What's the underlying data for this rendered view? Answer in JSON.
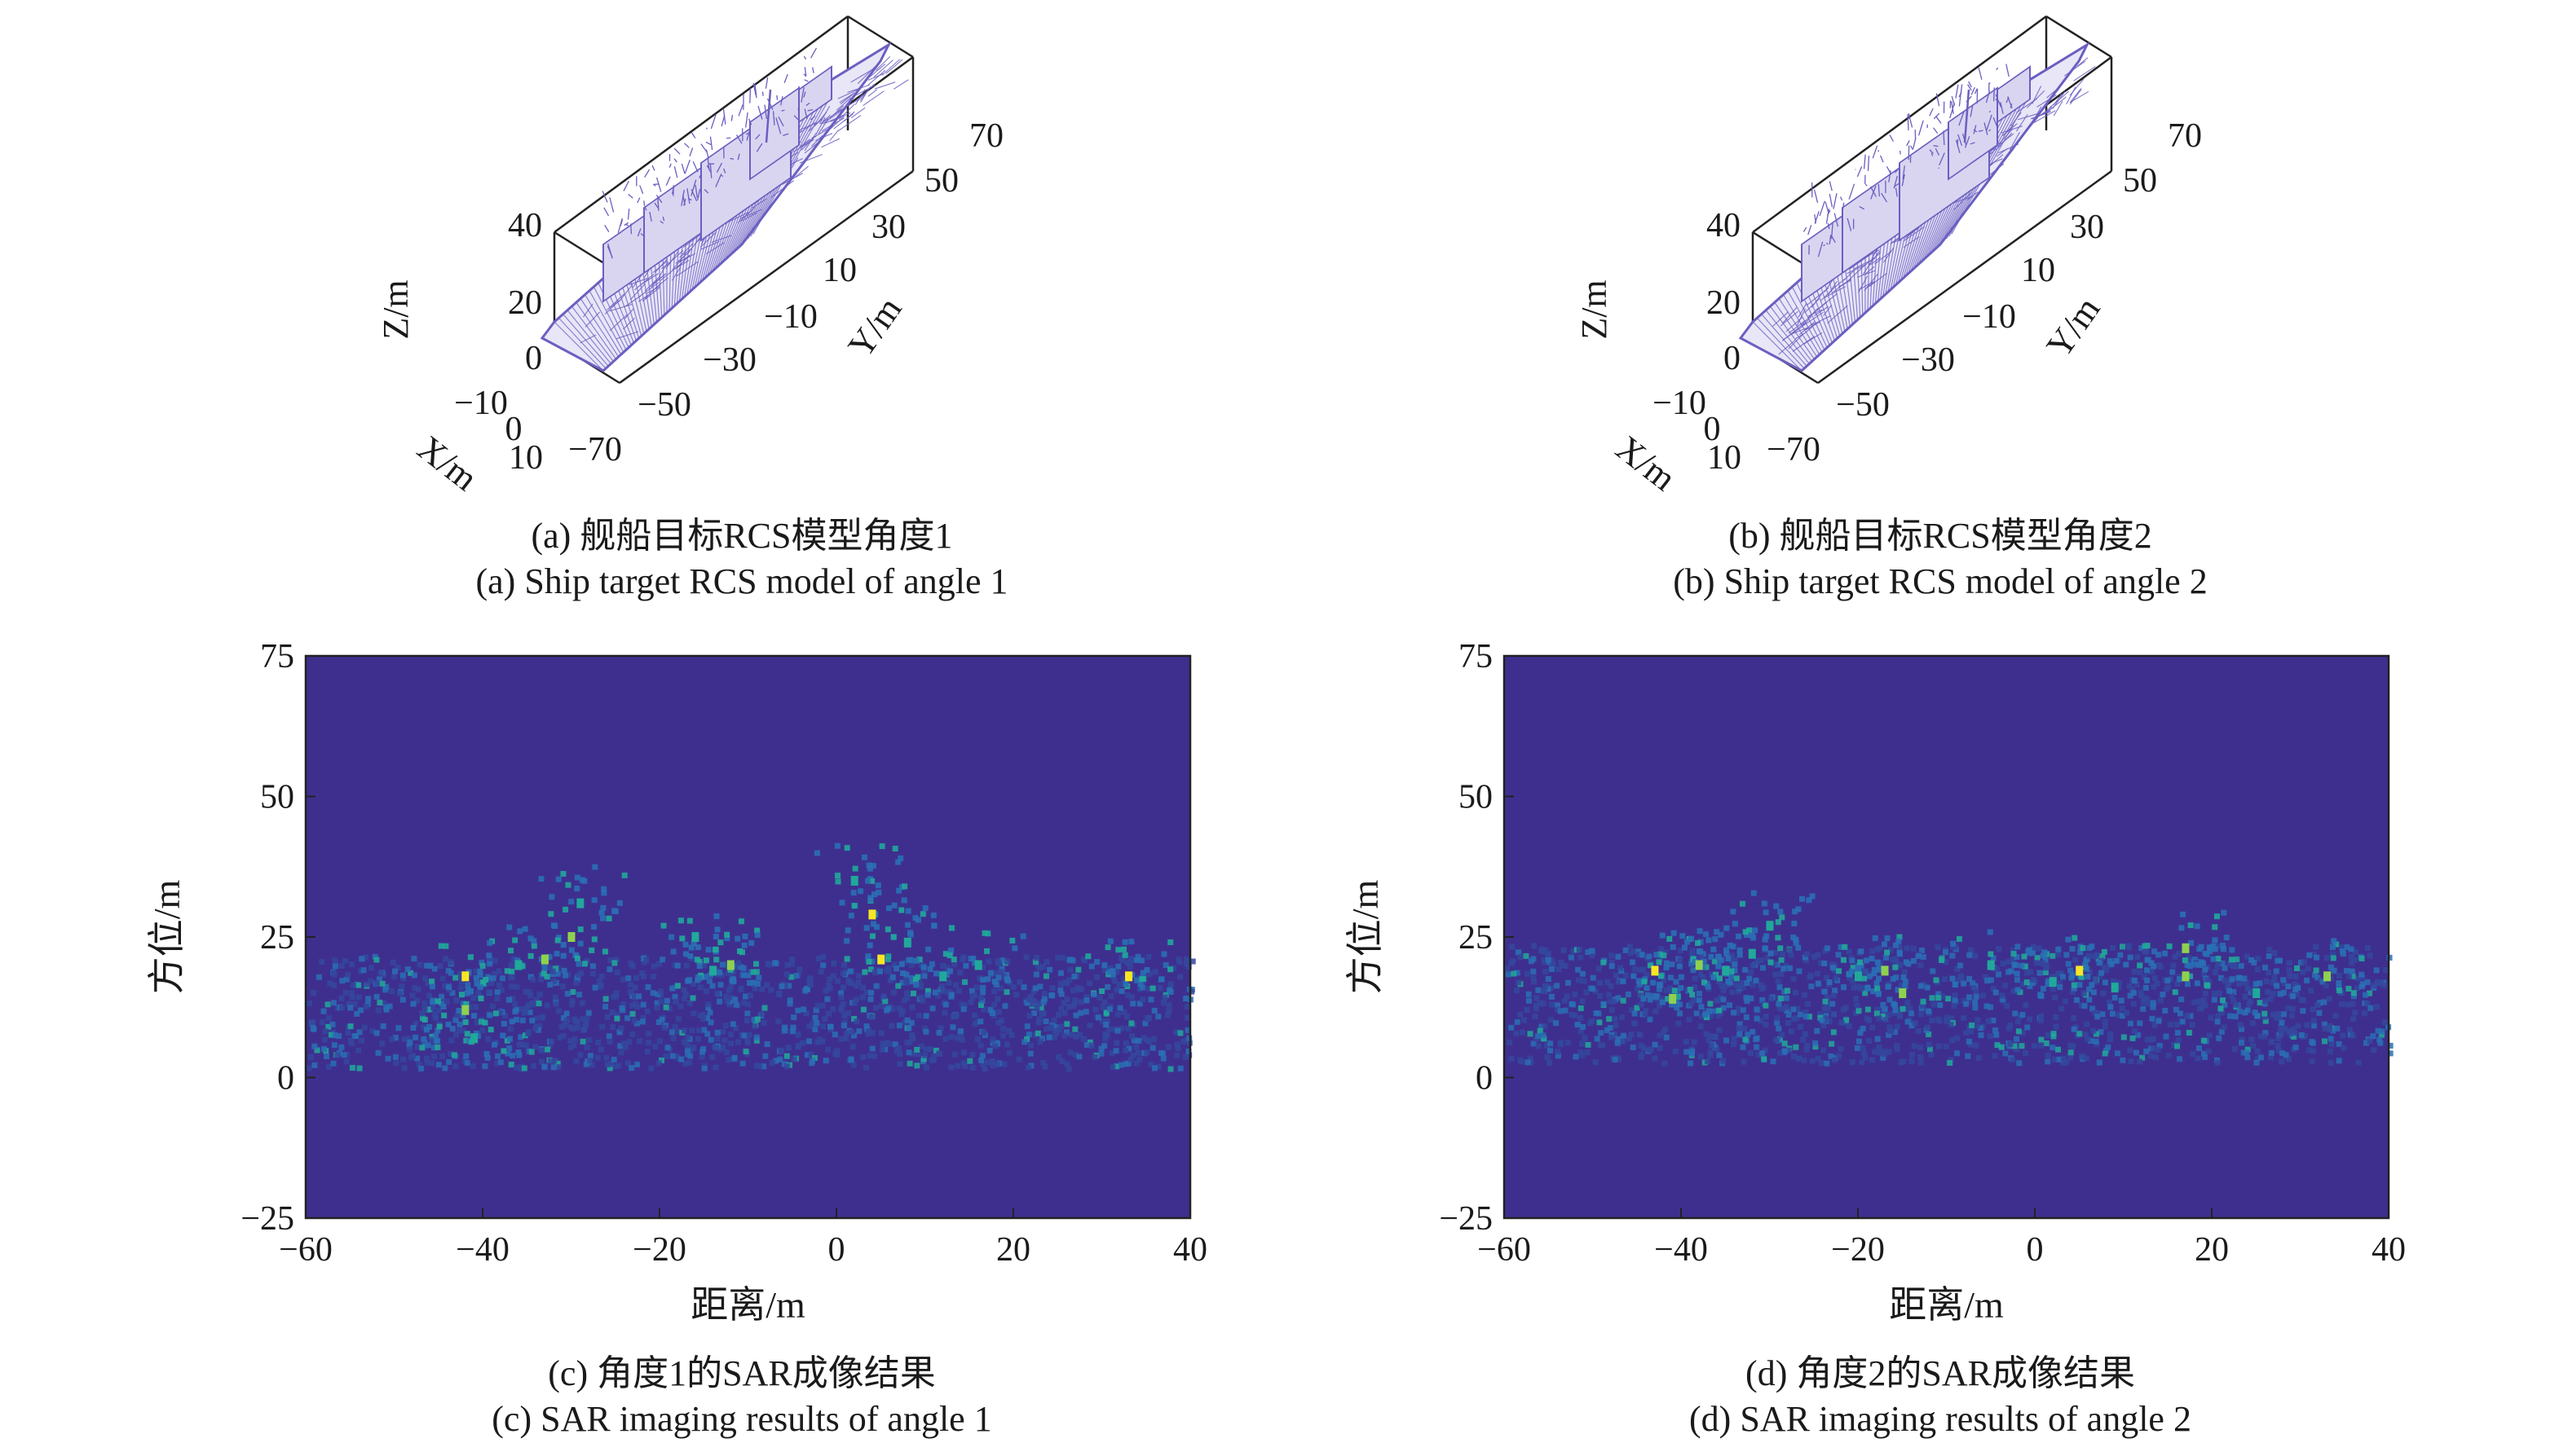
{
  "figure": {
    "panels": [
      {
        "id": "a",
        "caption_cn": "(a) 舰船目标RCS模型角度1",
        "caption_en": "(a) Ship target RCS model of angle 1"
      },
      {
        "id": "b",
        "caption_cn": "(b) 舰船目标RCS模型角度2",
        "caption_en": "(b) Ship target RCS model of angle 2"
      },
      {
        "id": "c",
        "caption_cn": "(c) 角度1的SAR成像结果",
        "caption_en": "(c) SAR imaging results of angle 1"
      },
      {
        "id": "d",
        "caption_cn": "(d) 角度2的SAR成像结果",
        "caption_en": "(d) SAR imaging results of angle 2"
      }
    ]
  },
  "colors": {
    "mesh": "#6a5fc0",
    "sar_background": "#3e2f8f",
    "sar_low": "#2a6fb5",
    "sar_mid": "#20a99a",
    "sar_high": "#f7e625"
  },
  "chart_data": [
    {
      "type": "3d-mesh",
      "panel": "a",
      "xlabel": "X/m",
      "ylabel": "Y/m",
      "zlabel": "Z/m",
      "x_ticks": [
        "−10",
        "0",
        "10"
      ],
      "y_ticks": [
        "−70",
        "−50",
        "−30",
        "−10",
        "10",
        "30",
        "50",
        "70"
      ],
      "z_ticks": [
        "0",
        "20",
        "40"
      ],
      "xlim": [
        -10,
        10
      ],
      "ylim": [
        -70,
        70
      ],
      "zlim": [
        0,
        40
      ]
    },
    {
      "type": "3d-mesh",
      "panel": "b",
      "xlabel": "X/m",
      "ylabel": "Y/m",
      "zlabel": "Z/m",
      "x_ticks": [
        "−10",
        "0",
        "10"
      ],
      "y_ticks": [
        "−70",
        "−50",
        "−30",
        "−10",
        "10",
        "30",
        "50",
        "70"
      ],
      "z_ticks": [
        "0",
        "20",
        "40"
      ],
      "xlim": [
        -10,
        10
      ],
      "ylim": [
        -70,
        70
      ],
      "zlim": [
        0,
        40
      ]
    },
    {
      "type": "heatmap",
      "panel": "c",
      "xlabel": "距离/m",
      "ylabel": "方位/m",
      "xlim": [
        -60,
        40
      ],
      "ylim": [
        -25,
        75
      ],
      "x_ticks": [
        -60,
        -40,
        -20,
        0,
        20,
        40
      ],
      "y_ticks": [
        -25,
        0,
        25,
        50,
        75
      ],
      "x_tick_labels": [
        "−60",
        "−40",
        "−20",
        "0",
        "20",
        "40"
      ],
      "y_tick_labels": [
        "−25",
        "0",
        "25",
        "50",
        "75"
      ],
      "band": {
        "x_range": [
          -60,
          40
        ],
        "y_range": [
          2,
          22
        ]
      },
      "bright_points": [
        {
          "x": -42,
          "y": 18,
          "v": 1.0
        },
        {
          "x": -42,
          "y": 12,
          "v": 0.8
        },
        {
          "x": -41,
          "y": 7,
          "v": 0.6
        },
        {
          "x": -36,
          "y": 20,
          "v": 0.55
        },
        {
          "x": -33,
          "y": 21,
          "v": 0.7
        },
        {
          "x": -30,
          "y": 25,
          "v": 0.85
        },
        {
          "x": -29,
          "y": 31,
          "v": 0.6
        },
        {
          "x": -16,
          "y": 25,
          "v": 0.55
        },
        {
          "x": -14,
          "y": 19,
          "v": 0.65
        },
        {
          "x": -12,
          "y": 20,
          "v": 0.7
        },
        {
          "x": 2,
          "y": 35,
          "v": 0.55
        },
        {
          "x": 4,
          "y": 29,
          "v": 0.95
        },
        {
          "x": 5,
          "y": 21,
          "v": 0.9
        },
        {
          "x": 8,
          "y": 24,
          "v": 0.6
        },
        {
          "x": 12,
          "y": 18,
          "v": 0.6
        },
        {
          "x": 16,
          "y": 20,
          "v": 0.65
        },
        {
          "x": 33,
          "y": 18,
          "v": 0.9
        }
      ]
    },
    {
      "type": "heatmap",
      "panel": "d",
      "xlabel": "距离/m",
      "ylabel": "方位/m",
      "xlim": [
        -60,
        40
      ],
      "ylim": [
        -25,
        75
      ],
      "x_ticks": [
        -60,
        -40,
        -20,
        0,
        20,
        40
      ],
      "y_ticks": [
        -25,
        0,
        25,
        50,
        75
      ],
      "x_tick_labels": [
        "−60",
        "−40",
        "−20",
        "0",
        "20",
        "40"
      ],
      "y_tick_labels": [
        "−25",
        "0",
        "25",
        "50",
        "75"
      ],
      "band": {
        "x_range": [
          -60,
          40
        ],
        "y_range": [
          3,
          24
        ]
      },
      "bright_points": [
        {
          "x": -43,
          "y": 19,
          "v": 0.9
        },
        {
          "x": -41,
          "y": 14,
          "v": 0.7
        },
        {
          "x": -38,
          "y": 20,
          "v": 0.8
        },
        {
          "x": -35,
          "y": 19,
          "v": 0.6
        },
        {
          "x": -32,
          "y": 22,
          "v": 0.65
        },
        {
          "x": -30,
          "y": 27,
          "v": 0.6
        },
        {
          "x": -20,
          "y": 18,
          "v": 0.55
        },
        {
          "x": -17,
          "y": 19,
          "v": 0.85
        },
        {
          "x": -15,
          "y": 15,
          "v": 0.7
        },
        {
          "x": -5,
          "y": 20,
          "v": 0.55
        },
        {
          "x": 2,
          "y": 17,
          "v": 0.6
        },
        {
          "x": 5,
          "y": 19,
          "v": 0.9
        },
        {
          "x": 9,
          "y": 16,
          "v": 0.6
        },
        {
          "x": 17,
          "y": 23,
          "v": 0.8
        },
        {
          "x": 17,
          "y": 18,
          "v": 0.7
        },
        {
          "x": 25,
          "y": 15,
          "v": 0.55
        },
        {
          "x": 33,
          "y": 18,
          "v": 0.75
        }
      ]
    }
  ]
}
